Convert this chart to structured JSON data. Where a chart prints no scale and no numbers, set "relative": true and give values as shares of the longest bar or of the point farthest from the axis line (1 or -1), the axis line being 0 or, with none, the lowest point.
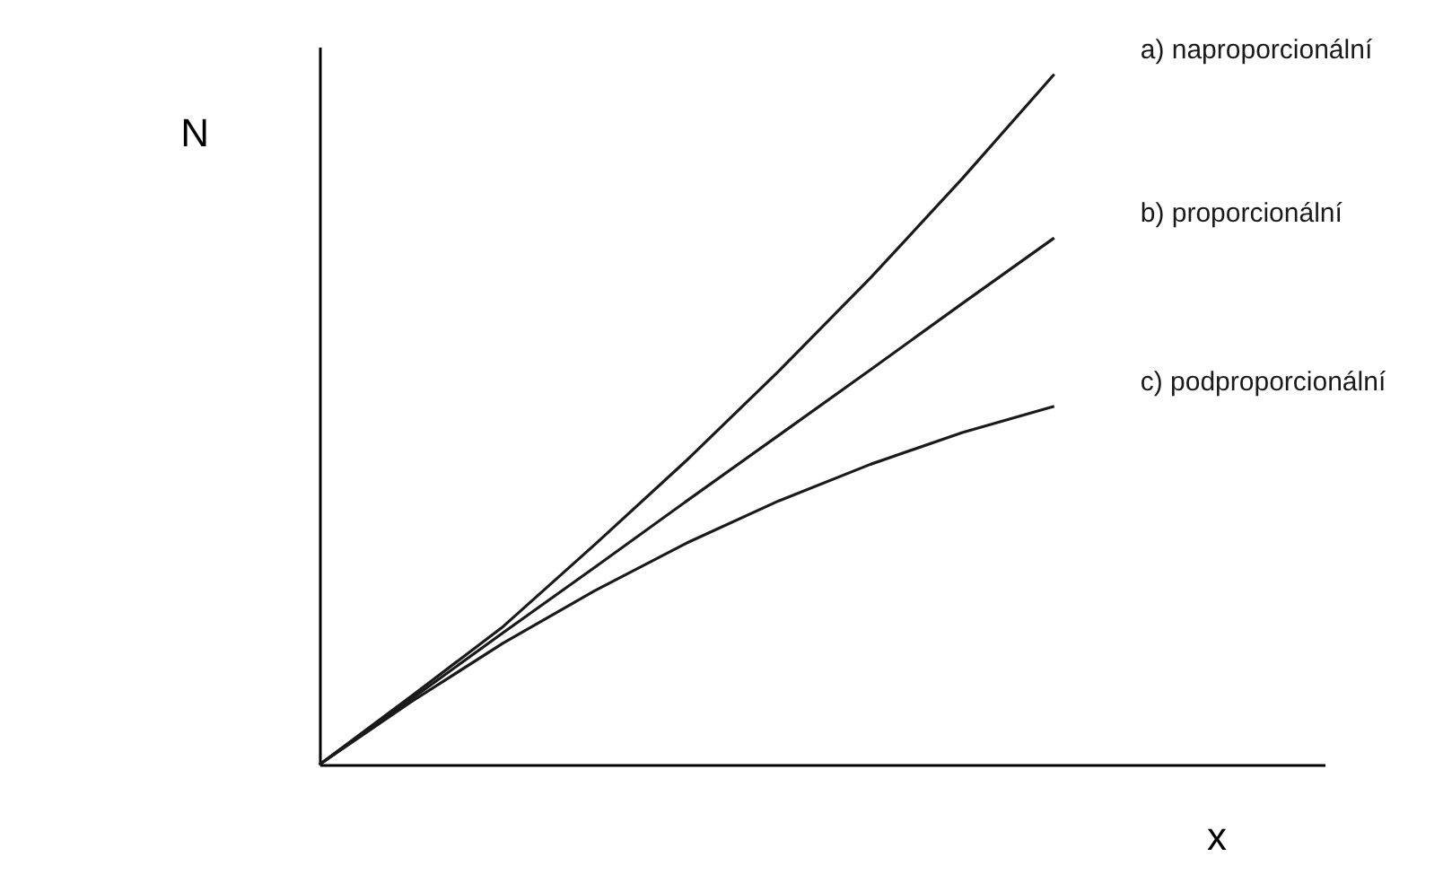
{
  "chart_data": {
    "type": "line",
    "relative": true,
    "xlabel": "x",
    "ylabel": "N",
    "categories": [
      null,
      null,
      null,
      null,
      null,
      null,
      null,
      null,
      null
    ],
    "series": [
      {
        "name": "a) naproporcionální",
        "color": "#1a1a1a",
        "values": [
          0,
          0.099,
          0.2,
          0.319,
          0.441,
          0.57,
          0.705,
          0.849,
          1
        ]
      },
      {
        "name": "b) proporcionální",
        "color": "#1a1a1a",
        "values": [
          0,
          0.095,
          0.191,
          0.286,
          0.382,
          0.477,
          0.572,
          0.668,
          0.763
        ]
      },
      {
        "name": "c) podproporcionální",
        "color": "#1a1a1a",
        "values": [
          0,
          0.091,
          0.176,
          0.252,
          0.321,
          0.382,
          0.435,
          0.481,
          0.519
        ]
      }
    ],
    "legend": false,
    "tick_labels": false,
    "grid": false,
    "marker": "none",
    "line_style": "solid"
  }
}
